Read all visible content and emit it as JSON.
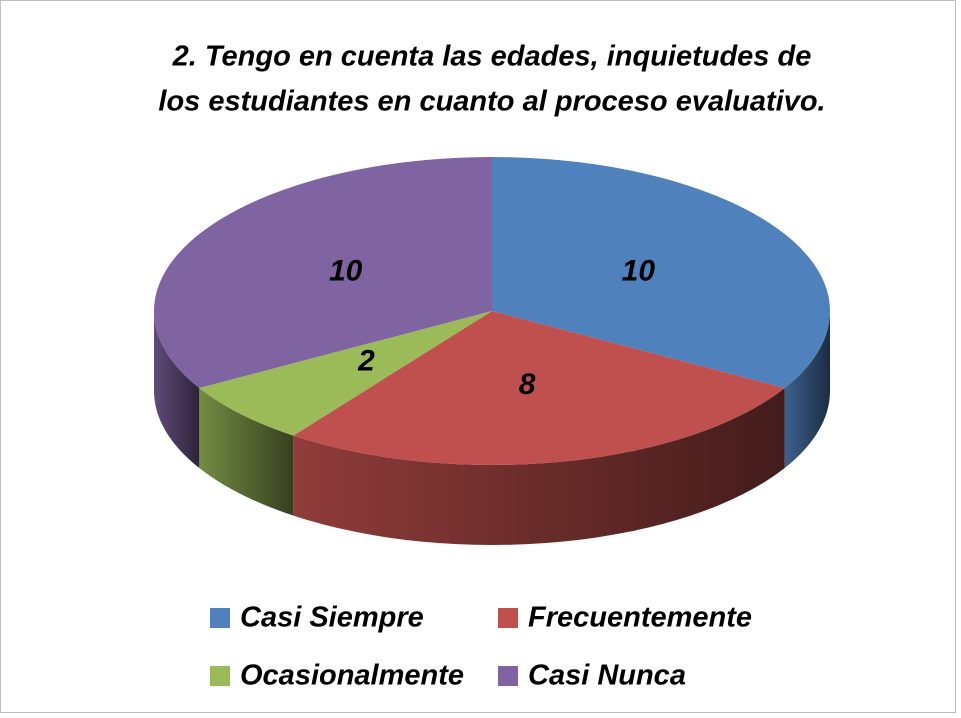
{
  "chart_data": {
    "type": "pie",
    "title": [
      "2. Tengo en cuenta las edades, inquietudes  de",
      "los estudiantes en cuanto al proceso  evaluativo."
    ],
    "categories": [
      "Casi Siempre",
      "Frecuentemente",
      "Ocasionalmente",
      "Casi Nunca"
    ],
    "values": [
      10,
      8,
      2,
      10
    ],
    "colors": [
      "#4f81bd",
      "#c0504d",
      "#9bbb59",
      "#8064a2"
    ],
    "legend": "bottom"
  }
}
